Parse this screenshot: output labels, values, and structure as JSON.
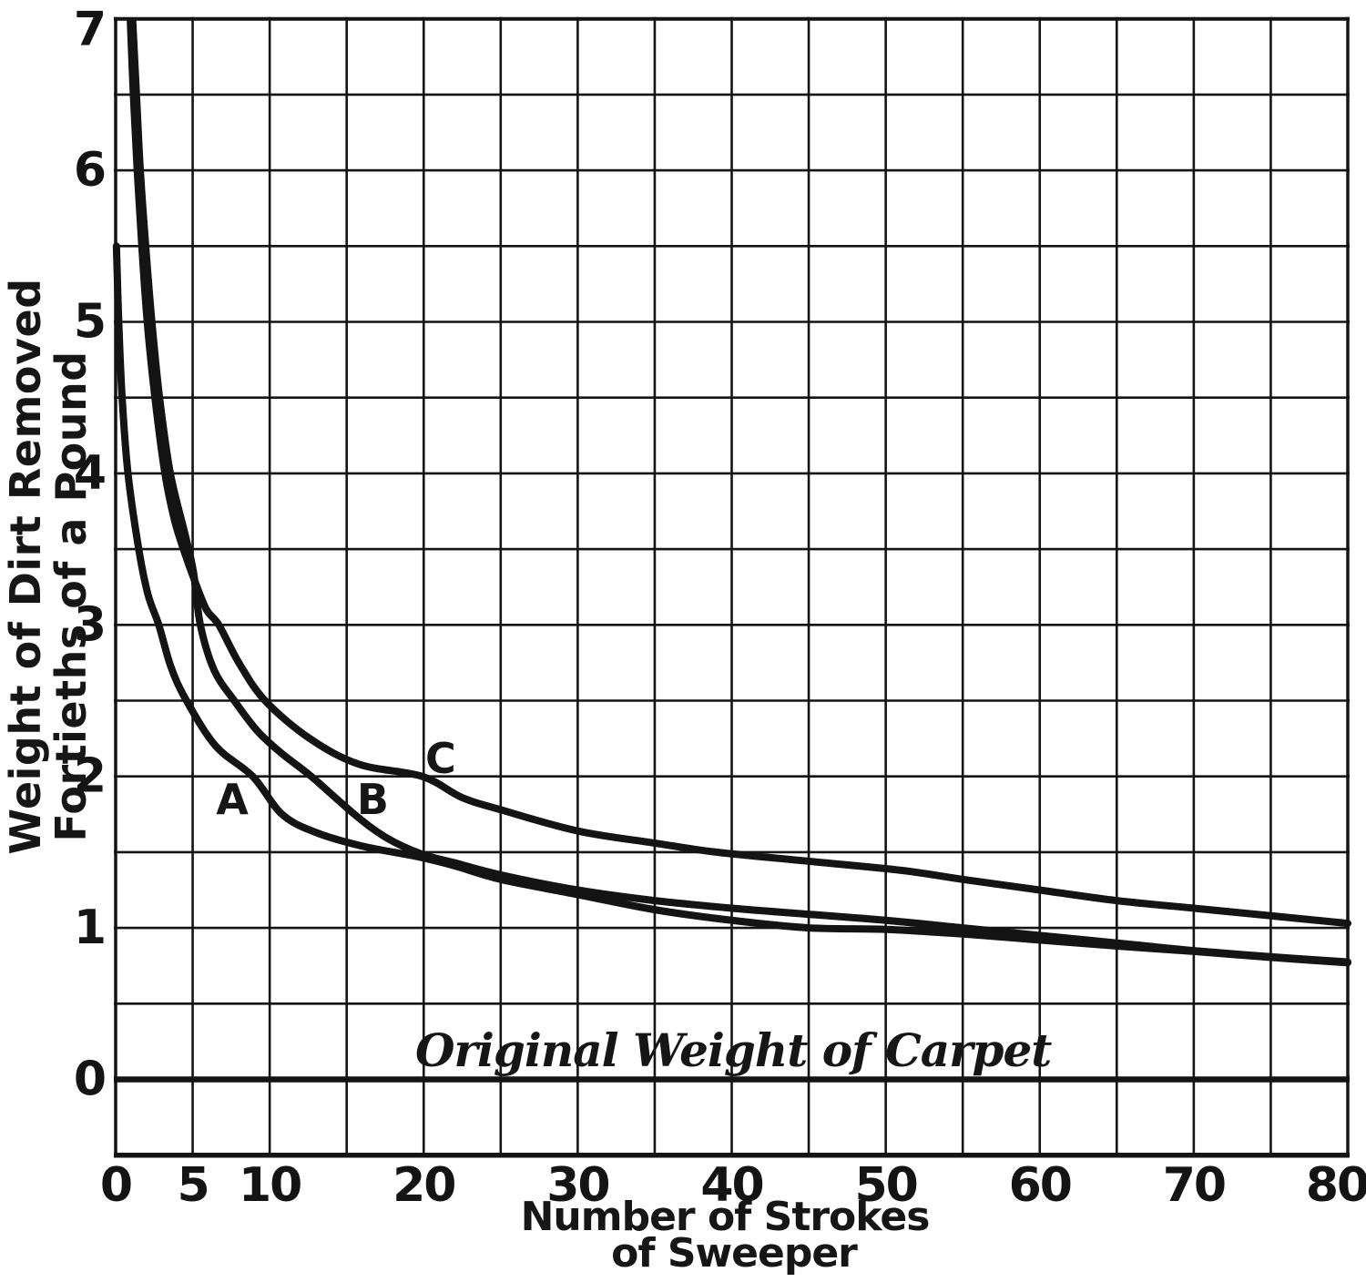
{
  "figure": {
    "background": "#ffffff",
    "ink_color": "#141414",
    "y_axis_title_line1": "Weight of Dirt Removed",
    "y_axis_title_line2": "Fortieths of a Pound",
    "x_axis_title_line1": "Number of Strokes",
    "x_axis_title_line2": "of Sweeper"
  },
  "chart_data": {
    "type": "line",
    "title": "",
    "xlabel": "Number of Strokes of Sweeper",
    "ylabel": "Weight of Dirt Removed, Fortieths of a Pound",
    "xlim": [
      0,
      80
    ],
    "ylim": [
      -0.5,
      7
    ],
    "x_grid_step": 5,
    "y_grid_step": 0.5,
    "grid": true,
    "xticks": [
      0,
      5,
      10,
      20,
      30,
      40,
      50,
      60,
      70,
      80
    ],
    "yticks": [
      7,
      6,
      5,
      4,
      3,
      2,
      1,
      0
    ],
    "legend": "inline curve labels",
    "baseline_annotation": {
      "label": "Original Weight of Carpet",
      "y": 0,
      "label_at": [
        40.1,
        0.19
      ]
    },
    "series": [
      {
        "name": "A",
        "label_at": [
          7.57,
          1.85
        ],
        "points": [
          [
            0.05,
            5.5
          ],
          [
            0.2,
            5.0
          ],
          [
            0.42,
            4.5
          ],
          [
            0.8,
            4.0
          ],
          [
            1.5,
            3.5
          ],
          [
            2.1,
            3.2
          ],
          [
            2.8,
            3.0
          ],
          [
            3.6,
            2.72
          ],
          [
            4.6,
            2.5
          ],
          [
            6.5,
            2.2
          ],
          [
            8.9,
            2.0
          ],
          [
            10.8,
            1.75
          ],
          [
            13,
            1.63
          ],
          [
            16,
            1.54
          ],
          [
            19.6,
            1.47
          ],
          [
            22,
            1.41
          ],
          [
            25,
            1.32
          ],
          [
            30,
            1.22
          ],
          [
            35,
            1.12
          ],
          [
            40,
            1.05
          ],
          [
            45,
            1.0
          ],
          [
            50,
            0.99
          ],
          [
            55,
            0.96
          ],
          [
            60,
            0.92
          ],
          [
            65,
            0.88
          ],
          [
            70,
            0.845
          ],
          [
            75,
            0.805
          ],
          [
            80,
            0.77
          ]
        ]
      },
      {
        "name": "B",
        "label_at": [
          16.7,
          1.85
        ],
        "points": [
          [
            1.1,
            7.0
          ],
          [
            1.35,
            6.5
          ],
          [
            1.6,
            6.0
          ],
          [
            1.95,
            5.5
          ],
          [
            2.35,
            5.0
          ],
          [
            2.85,
            4.5
          ],
          [
            3.55,
            4.0
          ],
          [
            4.5,
            3.6
          ],
          [
            5.05,
            3.35
          ],
          [
            5.5,
            3.0
          ],
          [
            6.4,
            2.7
          ],
          [
            7.7,
            2.5
          ],
          [
            9.2,
            2.3
          ],
          [
            10.8,
            2.15
          ],
          [
            12.7,
            2.0
          ],
          [
            15.5,
            1.75
          ],
          [
            17.5,
            1.6
          ],
          [
            19.8,
            1.49
          ],
          [
            22,
            1.43
          ],
          [
            25,
            1.35
          ],
          [
            30,
            1.25
          ],
          [
            35,
            1.18
          ],
          [
            40,
            1.13
          ],
          [
            45,
            1.09
          ],
          [
            50,
            1.05
          ],
          [
            55,
            1.0
          ],
          [
            59,
            0.96
          ],
          [
            63,
            0.92
          ],
          [
            66,
            0.89
          ],
          [
            70,
            0.85
          ],
          [
            75,
            0.81
          ],
          [
            80,
            0.775
          ]
        ]
      },
      {
        "name": "C",
        "label_at": [
          21.1,
          2.12
        ],
        "points": [
          [
            0.95,
            7.0
          ],
          [
            1.15,
            6.5
          ],
          [
            1.4,
            6.0
          ],
          [
            1.7,
            5.5
          ],
          [
            2.05,
            5.0
          ],
          [
            2.55,
            4.5
          ],
          [
            3.2,
            4.0
          ],
          [
            3.8,
            3.7
          ],
          [
            4.4,
            3.5
          ],
          [
            5.1,
            3.3
          ],
          [
            5.9,
            3.1
          ],
          [
            6.7,
            3.0
          ],
          [
            8.0,
            2.75
          ],
          [
            9.7,
            2.5
          ],
          [
            12.6,
            2.25
          ],
          [
            15.8,
            2.08
          ],
          [
            19.9,
            2.0
          ],
          [
            22.5,
            1.86
          ],
          [
            25,
            1.78
          ],
          [
            30,
            1.64
          ],
          [
            35,
            1.56
          ],
          [
            39,
            1.5
          ],
          [
            45,
            1.44
          ],
          [
            51,
            1.38
          ],
          [
            55,
            1.32
          ],
          [
            60,
            1.25
          ],
          [
            65,
            1.18
          ],
          [
            70,
            1.13
          ],
          [
            75,
            1.08
          ],
          [
            80,
            1.03
          ]
        ]
      }
    ]
  }
}
